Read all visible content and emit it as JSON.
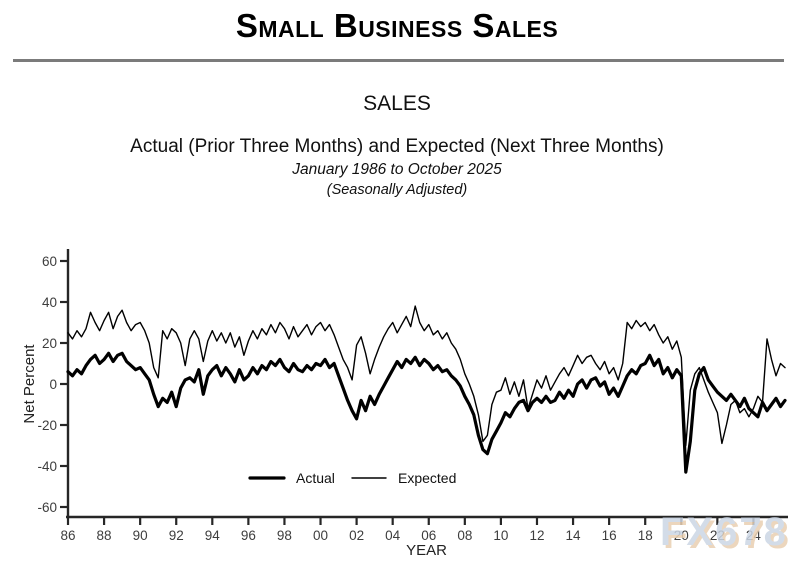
{
  "page_title": "Small Business Sales",
  "divider_color": "#7b7b7b",
  "watermark": {
    "text": "FX678",
    "color": "#ccd6e4",
    "shadow_color": "#e9d0b2"
  },
  "chart_data": {
    "type": "line",
    "title": "SALES",
    "subtitle": "Actual (Prior Three Months) and Expected (Next Three Months)",
    "date_range": "January 1986 to October 2025",
    "adjustment_note": "(Seasonally Adjusted)",
    "xlabel": "YEAR",
    "ylabel": "Net Percent",
    "xlim": [
      1986,
      2025.75
    ],
    "ylim": [
      -65,
      65
    ],
    "grid": false,
    "y_ticks": [
      60,
      40,
      20,
      0,
      -20,
      -40,
      -60
    ],
    "x_tick_years": [
      1986,
      1988,
      1990,
      1992,
      1994,
      1996,
      1998,
      2000,
      2002,
      2004,
      2006,
      2008,
      2010,
      2012,
      2014,
      2016,
      2018,
      2020,
      2022,
      2024
    ],
    "x_tick_labels": [
      "86",
      "88",
      "90",
      "92",
      "94",
      "96",
      "98",
      "00",
      "02",
      "04",
      "06",
      "08",
      "10",
      "12",
      "14",
      "16",
      "18",
      "20",
      "22",
      "24"
    ],
    "x_start": 1986,
    "x_step": 0.25,
    "legend_position": "inside-bottom-center",
    "line_color": "#000000",
    "series": [
      {
        "name": "Actual",
        "stroke_width": 3.2,
        "values": [
          6,
          4,
          7,
          5,
          9,
          12,
          14,
          10,
          12,
          15,
          11,
          14,
          15,
          11,
          9,
          7,
          8,
          5,
          2,
          -5,
          -11,
          -7,
          -9,
          -4,
          -11,
          -2,
          2,
          3,
          1,
          7,
          -5,
          4,
          7,
          9,
          4,
          8,
          5,
          1,
          7,
          2,
          4,
          8,
          5,
          9,
          7,
          11,
          9,
          12,
          8,
          6,
          10,
          7,
          6,
          9,
          7,
          10,
          9,
          12,
          8,
          10,
          4,
          -2,
          -8,
          -13,
          -17,
          -8,
          -13,
          -6,
          -10,
          -5,
          -1,
          3,
          7,
          11,
          8,
          12,
          10,
          13,
          9,
          12,
          10,
          7,
          9,
          6,
          7,
          4,
          2,
          -1,
          -6,
          -10,
          -15,
          -25,
          -32,
          -34,
          -27,
          -23,
          -19,
          -14,
          -16,
          -12,
          -9,
          -8,
          -13,
          -9,
          -7,
          -9,
          -6,
          -9,
          -8,
          -4,
          -7,
          -3,
          -6,
          0,
          2,
          -2,
          2,
          3,
          -1,
          1,
          -5,
          -2,
          -6,
          -1,
          4,
          7,
          5,
          9,
          10,
          14,
          9,
          12,
          5,
          8,
          3,
          7,
          4,
          -43,
          -28,
          -3,
          5,
          8,
          2,
          -1,
          -4,
          -6,
          -8,
          -5,
          -8,
          -11,
          -7,
          -12,
          -14,
          -16,
          -9,
          -13,
          -10,
          -7,
          -11,
          -8
        ]
      },
      {
        "name": "Expected",
        "stroke_width": 1.4,
        "values": [
          25,
          22,
          26,
          23,
          27,
          35,
          30,
          26,
          31,
          35,
          27,
          33,
          36,
          30,
          26,
          29,
          30,
          26,
          20,
          8,
          3,
          26,
          22,
          27,
          25,
          20,
          9,
          22,
          26,
          22,
          11,
          21,
          26,
          21,
          25,
          20,
          25,
          18,
          23,
          14,
          21,
          26,
          22,
          27,
          24,
          29,
          25,
          30,
          27,
          22,
          28,
          23,
          26,
          29,
          24,
          28,
          30,
          26,
          29,
          24,
          18,
          12,
          8,
          2,
          19,
          23,
          15,
          5,
          12,
          18,
          23,
          27,
          30,
          25,
          29,
          33,
          28,
          38,
          30,
          26,
          29,
          24,
          26,
          22,
          25,
          20,
          17,
          12,
          5,
          0,
          -6,
          -15,
          -28,
          -25,
          -10,
          -4,
          -3,
          3,
          -5,
          1,
          -6,
          2,
          -12,
          -5,
          2,
          -2,
          4,
          -3,
          1,
          5,
          8,
          4,
          9,
          14,
          10,
          13,
          14,
          10,
          7,
          11,
          5,
          8,
          2,
          10,
          30,
          27,
          31,
          28,
          30,
          26,
          29,
          24,
          20,
          23,
          17,
          21,
          13,
          -30,
          -3,
          5,
          8,
          2,
          -4,
          -9,
          -14,
          -29,
          -20,
          -10,
          -8,
          -14,
          -12,
          -16,
          -12,
          -6,
          -9,
          22,
          12,
          4,
          10,
          8
        ]
      }
    ]
  }
}
